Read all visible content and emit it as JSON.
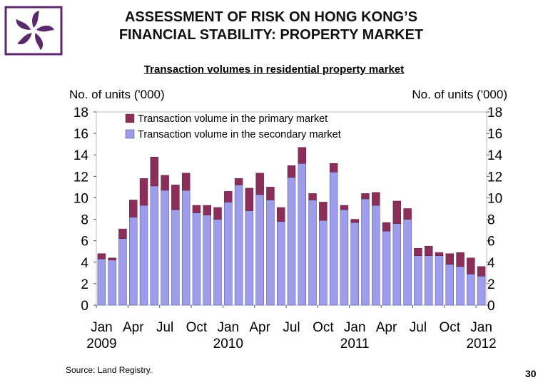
{
  "title_line1": "ASSESSMENT OF RISK ON HONG KONG’S",
  "title_line2": "FINANCIAL STABILITY: PROPERTY MARKET",
  "source": "Source: Land Registry.",
  "page_number": "30",
  "colors": {
    "primary": "#8b2e5a",
    "secondary": "#9d9dec",
    "logo": "#5b2a6e"
  },
  "chart_data": {
    "type": "bar",
    "stacked": true,
    "title": "Transaction volumes in residential property market",
    "ylabel_left": "No. of units ('000)",
    "ylabel_right": "No. of units ('000)",
    "ylim": [
      0,
      18
    ],
    "yticks": [
      0,
      2,
      4,
      6,
      8,
      10,
      12,
      14,
      16,
      18
    ],
    "grid": false,
    "legend_position": "top-left",
    "x_tick_labels": [
      {
        "index": 0,
        "month": "Jan",
        "year": "2009"
      },
      {
        "index": 3,
        "month": "Apr",
        "year": ""
      },
      {
        "index": 6,
        "month": "Jul",
        "year": ""
      },
      {
        "index": 9,
        "month": "Oct",
        "year": ""
      },
      {
        "index": 12,
        "month": "Jan",
        "year": "2010"
      },
      {
        "index": 15,
        "month": "Apr",
        "year": ""
      },
      {
        "index": 18,
        "month": "Jul",
        "year": ""
      },
      {
        "index": 21,
        "month": "Oct",
        "year": ""
      },
      {
        "index": 24,
        "month": "Jan",
        "year": "2011"
      },
      {
        "index": 27,
        "month": "Apr",
        "year": ""
      },
      {
        "index": 30,
        "month": "Jul",
        "year": ""
      },
      {
        "index": 33,
        "month": "Oct",
        "year": ""
      },
      {
        "index": 36,
        "month": "Jan",
        "year": "2012"
      }
    ],
    "categories": [
      "Jan 2009",
      "Feb 2009",
      "Mar 2009",
      "Apr 2009",
      "May 2009",
      "Jun 2009",
      "Jul 2009",
      "Aug 2009",
      "Sep 2009",
      "Oct 2009",
      "Nov 2009",
      "Dec 2009",
      "Jan 2010",
      "Feb 2010",
      "Mar 2010",
      "Apr 2010",
      "May 2010",
      "Jun 2010",
      "Jul 2010",
      "Aug 2010",
      "Sep 2010",
      "Oct 2010",
      "Nov 2010",
      "Dec 2010",
      "Jan 2011",
      "Feb 2011",
      "Mar 2011",
      "Apr 2011",
      "May 2011",
      "Jun 2011",
      "Jul 2011",
      "Aug 2011",
      "Sep 2011",
      "Oct 2011",
      "Nov 2011",
      "Dec 2011",
      "Jan 2012"
    ],
    "series": [
      {
        "name": "Transaction volume in the secondary market",
        "color": "#9d9dec",
        "values": [
          4.3,
          4.2,
          6.2,
          8.2,
          9.3,
          11.1,
          10.7,
          8.9,
          10.7,
          8.6,
          8.4,
          8.0,
          9.6,
          11.2,
          8.8,
          10.3,
          9.8,
          7.8,
          11.9,
          13.2,
          9.8,
          7.9,
          12.4,
          8.9,
          7.7,
          9.9,
          9.3,
          6.9,
          7.6,
          8.0,
          4.6,
          4.6,
          4.6,
          3.8,
          3.6,
          2.9,
          2.7
        ]
      },
      {
        "name": "Transaction volume in the primary market",
        "color": "#8b2e5a",
        "values": [
          0.5,
          0.2,
          0.9,
          1.6,
          2.5,
          2.7,
          1.4,
          2.3,
          1.6,
          0.7,
          0.9,
          1.1,
          1.0,
          0.6,
          2.1,
          2.0,
          1.2,
          1.3,
          1.1,
          1.5,
          0.6,
          1.7,
          0.8,
          0.4,
          0.3,
          0.5,
          1.2,
          0.8,
          2.1,
          1.0,
          0.7,
          0.9,
          0.3,
          1.0,
          1.3,
          1.5,
          0.9
        ]
      }
    ]
  }
}
